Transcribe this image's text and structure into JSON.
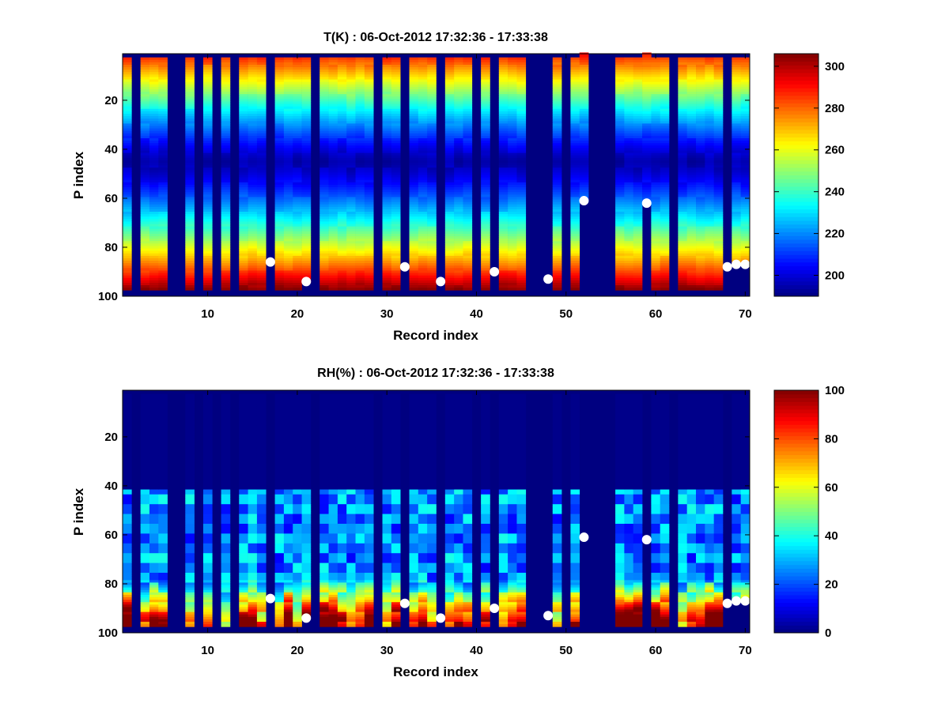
{
  "chart_data": [
    {
      "type": "heatmap",
      "title": "T(K) : 06-Oct-2012 17:32:36 - 17:33:38",
      "xlabel": "Record index",
      "ylabel": "P index",
      "xlim": [
        0.5,
        70.5
      ],
      "ylim": [
        1,
        100
      ],
      "y_reversed": true,
      "x_ticks": [
        10,
        20,
        30,
        40,
        50,
        60,
        70
      ],
      "y_ticks": [
        20,
        40,
        60,
        80,
        100
      ],
      "colorbar": {
        "min": 190,
        "max": 306,
        "ticks": [
          200,
          220,
          240,
          260,
          280,
          300
        ],
        "colormap": "jet"
      },
      "fill_value": 190,
      "top_fill_columns": [
        52,
        59
      ],
      "profile_columns": [
        1,
        3,
        4,
        5,
        8,
        10,
        12,
        14,
        15,
        16,
        18,
        19,
        20,
        21,
        23,
        24,
        25,
        26,
        27,
        28,
        30,
        31,
        33,
        34,
        35,
        37,
        38,
        39,
        41,
        43,
        44,
        45,
        49,
        51,
        56,
        57,
        58,
        60,
        61,
        63,
        64,
        65,
        66,
        67,
        69,
        70
      ],
      "surface_index": [
        97,
        97,
        97,
        97,
        97,
        97,
        97,
        97,
        97,
        97,
        97,
        97,
        97,
        97,
        97,
        97,
        86,
        97,
        97,
        97,
        94,
        97,
        97,
        97,
        97,
        97,
        97,
        97,
        97,
        97,
        97,
        88,
        97,
        97,
        97,
        94,
        97,
        97,
        97,
        97,
        97,
        90,
        97,
        97,
        97,
        97,
        97,
        93,
        97,
        97,
        97,
        61,
        97,
        97,
        97,
        97,
        97,
        97,
        62,
        97,
        97,
        97,
        97,
        97,
        97,
        97,
        97,
        88,
        87,
        87
      ],
      "profile_description": "warm near surface (~290-306 K), coldest near P index 45 (~195 K), warmer aloft (~280 K)",
      "markers": [
        {
          "x": 17,
          "y": 86
        },
        {
          "x": 21,
          "y": 94
        },
        {
          "x": 32,
          "y": 88
        },
        {
          "x": 36,
          "y": 94
        },
        {
          "x": 42,
          "y": 90
        },
        {
          "x": 48,
          "y": 93
        },
        {
          "x": 52,
          "y": 61
        },
        {
          "x": 59,
          "y": 62
        },
        {
          "x": 68,
          "y": 88
        },
        {
          "x": 69,
          "y": 87
        },
        {
          "x": 70,
          "y": 87
        }
      ]
    },
    {
      "type": "heatmap",
      "title": "RH(%) : 06-Oct-2012 17:32:36 - 17:33:38",
      "xlabel": "Record index",
      "ylabel": "P index",
      "xlim": [
        0.5,
        70.5
      ],
      "ylim": [
        1,
        100
      ],
      "y_reversed": true,
      "x_ticks": [
        10,
        20,
        30,
        40,
        50,
        60,
        70
      ],
      "y_ticks": [
        20,
        40,
        60,
        80,
        100
      ],
      "colorbar": {
        "min": 0,
        "max": 100,
        "ticks": [
          0,
          20,
          40,
          60,
          80,
          100
        ],
        "colormap": "jet"
      },
      "fill_value": 0,
      "profile_columns": [
        1,
        3,
        4,
        5,
        8,
        10,
        12,
        14,
        15,
        16,
        18,
        19,
        20,
        21,
        23,
        24,
        25,
        26,
        27,
        28,
        30,
        31,
        33,
        34,
        35,
        37,
        38,
        39,
        41,
        43,
        44,
        45,
        49,
        51,
        56,
        57,
        58,
        60,
        61,
        63,
        64,
        65,
        66,
        67,
        69,
        70
      ],
      "surface_index": [
        97,
        97,
        97,
        97,
        97,
        97,
        97,
        97,
        97,
        97,
        97,
        97,
        97,
        97,
        97,
        97,
        86,
        97,
        97,
        97,
        94,
        97,
        97,
        97,
        97,
        97,
        97,
        97,
        97,
        97,
        97,
        88,
        97,
        97,
        97,
        94,
        97,
        97,
        97,
        97,
        97,
        90,
        97,
        97,
        97,
        97,
        97,
        93,
        97,
        97,
        97,
        61,
        97,
        97,
        97,
        97,
        97,
        97,
        62,
        97,
        97,
        97,
        97,
        97,
        97,
        97,
        97,
        88,
        87,
        87
      ],
      "profile_description": "dry (~0-5%) above P index 42, moist 20-40% mid-levels, saturated (80-100%) near surface",
      "markers": [
        {
          "x": 17,
          "y": 86
        },
        {
          "x": 21,
          "y": 94
        },
        {
          "x": 32,
          "y": 88
        },
        {
          "x": 36,
          "y": 94
        },
        {
          "x": 42,
          "y": 90
        },
        {
          "x": 48,
          "y": 93
        },
        {
          "x": 52,
          "y": 61
        },
        {
          "x": 59,
          "y": 62
        },
        {
          "x": 68,
          "y": 88
        },
        {
          "x": 69,
          "y": 87
        },
        {
          "x": 70,
          "y": 87
        }
      ]
    }
  ]
}
